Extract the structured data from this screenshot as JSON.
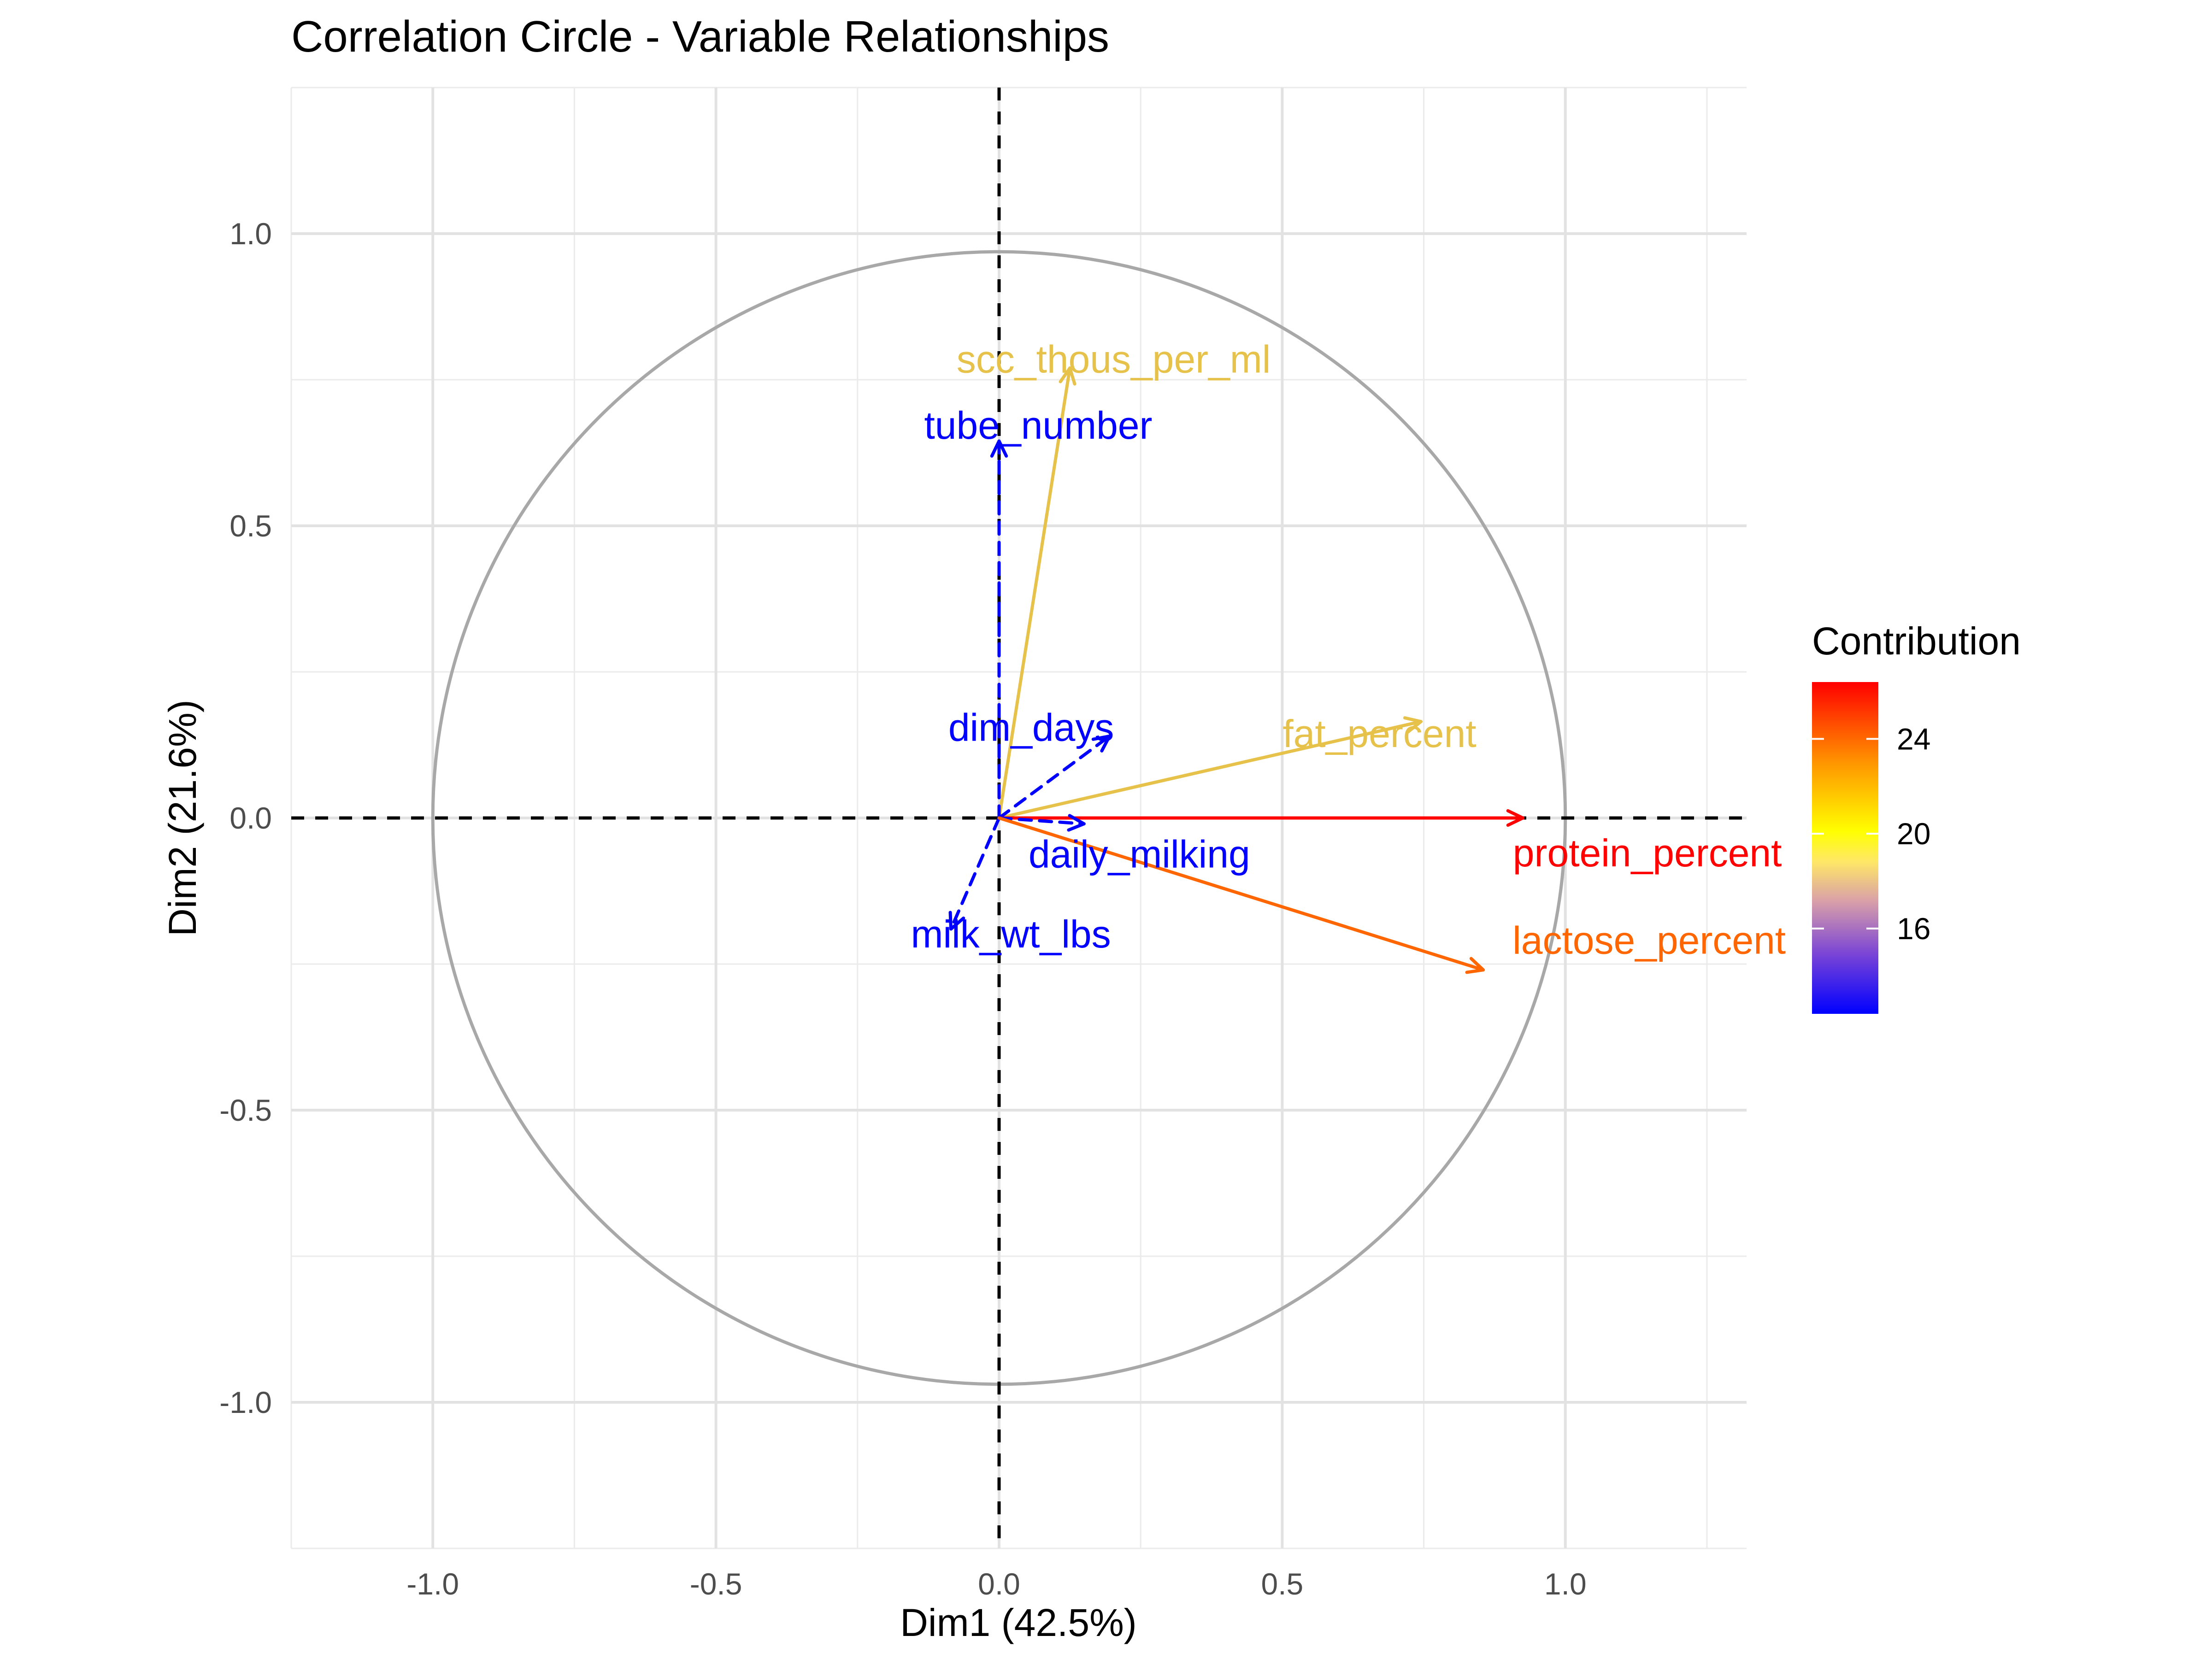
{
  "chart_data": {
    "type": "scatter",
    "subtype": "correlation-circle",
    "title": "Correlation Circle - Variable Relationships",
    "xlabel": "Dim1 (42.5%)",
    "ylabel": "Dim2 (21.6%)",
    "xlim": [
      -1.25,
      1.32
    ],
    "ylim": [
      -1.25,
      1.25
    ],
    "xticks": [
      -1.0,
      -0.5,
      0.0,
      0.5,
      1.0
    ],
    "yticks": [
      -1.0,
      -0.5,
      0.0,
      0.5,
      1.0
    ],
    "xtick_labels": [
      "-1.0",
      "-0.5",
      "0.0",
      "0.5",
      "1.0"
    ],
    "ytick_labels": [
      "-1.0",
      "-0.5",
      "0.0",
      "0.5",
      "1.0"
    ],
    "grid": true,
    "unit_circle": true,
    "reference_lines": {
      "x": 0,
      "y": 0,
      "style": "dashed"
    },
    "legend": {
      "title": "Contribution",
      "type": "gradient",
      "placement": "right",
      "range": [
        12.4,
        26.4
      ],
      "ticks": [
        16,
        20,
        24
      ],
      "tick_labels": [
        "16",
        "20",
        "24"
      ],
      "colors": [
        "#0000ff",
        "#ffff00",
        "#ff0000"
      ]
    },
    "variables": [
      {
        "name": "scc_thous_per_ml",
        "x": 0.125,
        "y": 0.77,
        "contribution": 18.0,
        "color": "#e6c24a"
      },
      {
        "name": "tube_number",
        "x": 0.0,
        "y": 0.645,
        "contribution": 12.5,
        "color": "#0000ff"
      },
      {
        "name": "fat_percent",
        "x": 0.745,
        "y": 0.165,
        "contribution": 18.5,
        "color": "#e6c24a"
      },
      {
        "name": "dim_days",
        "x": 0.195,
        "y": 0.14,
        "contribution": 12.5,
        "color": "#0000ff"
      },
      {
        "name": "protein_percent",
        "x": 0.925,
        "y": 0.0,
        "contribution": 26.0,
        "color": "#ff0000"
      },
      {
        "name": "daily_milking",
        "x": 0.15,
        "y": -0.01,
        "contribution": 12.5,
        "color": "#0000ff"
      },
      {
        "name": "milk_wt_lbs",
        "x": -0.085,
        "y": -0.19,
        "contribution": 12.5,
        "color": "#0000ff"
      },
      {
        "name": "lactose_percent",
        "x": 0.855,
        "y": -0.26,
        "contribution": 24.5,
        "color": "#ff6600"
      }
    ]
  }
}
